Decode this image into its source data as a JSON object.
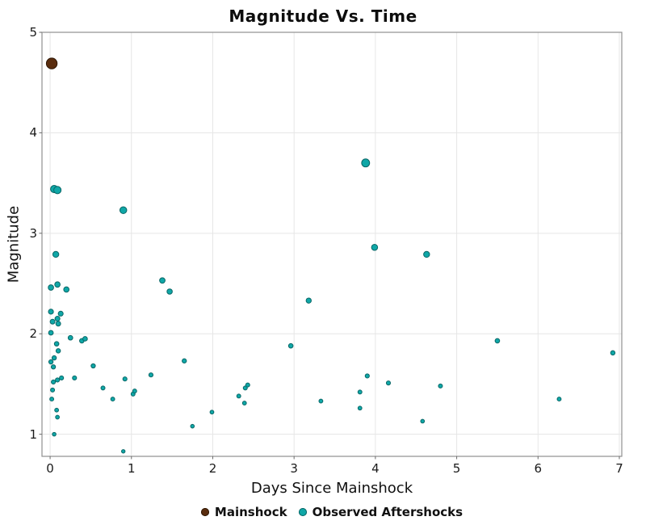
{
  "chart_data": {
    "type": "scatter",
    "title": "Magnitude Vs. Time",
    "xlabel": "Days Since Mainshock",
    "ylabel": "Magnitude",
    "xlim": [
      -0.1,
      7.03
    ],
    "ylim": [
      0.78,
      5.0
    ],
    "x_ticks": [
      0,
      1,
      2,
      3,
      4,
      5,
      6,
      7
    ],
    "y_ticks": [
      1,
      2,
      3,
      4,
      5
    ],
    "grid": true,
    "grid_color": "#e6e6e6",
    "spine_color": "#909090",
    "legend_position": "bottom-center",
    "series": [
      {
        "name": "Mainshock",
        "color": "#5a2d0e",
        "edge_color": "#2e1705",
        "points": [
          [
            0.02,
            4.69
          ]
        ]
      },
      {
        "name": "Observed Aftershocks",
        "color": "#0fa7a7",
        "edge_color": "#0a6666",
        "points": [
          [
            0.05,
            3.44
          ],
          [
            0.09,
            3.43
          ],
          [
            0.9,
            3.23
          ],
          [
            0.07,
            2.79
          ],
          [
            0.01,
            2.46
          ],
          [
            0.09,
            2.49
          ],
          [
            0.2,
            2.44
          ],
          [
            1.38,
            2.53
          ],
          [
            1.47,
            2.42
          ],
          [
            0.01,
            2.22
          ],
          [
            0.13,
            2.2
          ],
          [
            0.03,
            2.12
          ],
          [
            0.09,
            2.15
          ],
          [
            0.1,
            2.1
          ],
          [
            0.01,
            2.01
          ],
          [
            0.25,
            1.96
          ],
          [
            0.39,
            1.93
          ],
          [
            0.43,
            1.95
          ],
          [
            0.08,
            1.9
          ],
          [
            0.1,
            1.83
          ],
          [
            0.05,
            1.76
          ],
          [
            0.01,
            1.72
          ],
          [
            0.04,
            1.67
          ],
          [
            0.53,
            1.68
          ],
          [
            1.65,
            1.73
          ],
          [
            0.14,
            1.56
          ],
          [
            0.04,
            1.52
          ],
          [
            0.09,
            1.54
          ],
          [
            0.3,
            1.56
          ],
          [
            0.03,
            1.44
          ],
          [
            0.65,
            1.46
          ],
          [
            0.02,
            1.35
          ],
          [
            0.77,
            1.35
          ],
          [
            0.08,
            1.24
          ],
          [
            0.09,
            1.17
          ],
          [
            0.05,
            1.0
          ],
          [
            0.92,
            1.55
          ],
          [
            1.24,
            1.59
          ],
          [
            1.02,
            1.4
          ],
          [
            1.04,
            1.43
          ],
          [
            1.75,
            1.08
          ],
          [
            0.9,
            0.83
          ],
          [
            1.99,
            1.22
          ],
          [
            2.32,
            1.38
          ],
          [
            2.4,
            1.46
          ],
          [
            2.43,
            1.49
          ],
          [
            2.39,
            1.31
          ],
          [
            2.96,
            1.88
          ],
          [
            3.18,
            2.33
          ],
          [
            3.33,
            1.33
          ],
          [
            3.88,
            3.7
          ],
          [
            3.99,
            2.86
          ],
          [
            4.63,
            2.79
          ],
          [
            3.9,
            1.58
          ],
          [
            3.81,
            1.42
          ],
          [
            3.81,
            1.26
          ],
          [
            4.16,
            1.51
          ],
          [
            4.8,
            1.48
          ],
          [
            4.58,
            1.13
          ],
          [
            5.5,
            1.93
          ],
          [
            6.26,
            1.35
          ],
          [
            6.92,
            1.81
          ]
        ]
      }
    ],
    "legend": [
      {
        "label": "Mainshock"
      },
      {
        "label": "Observed Aftershocks"
      }
    ]
  }
}
